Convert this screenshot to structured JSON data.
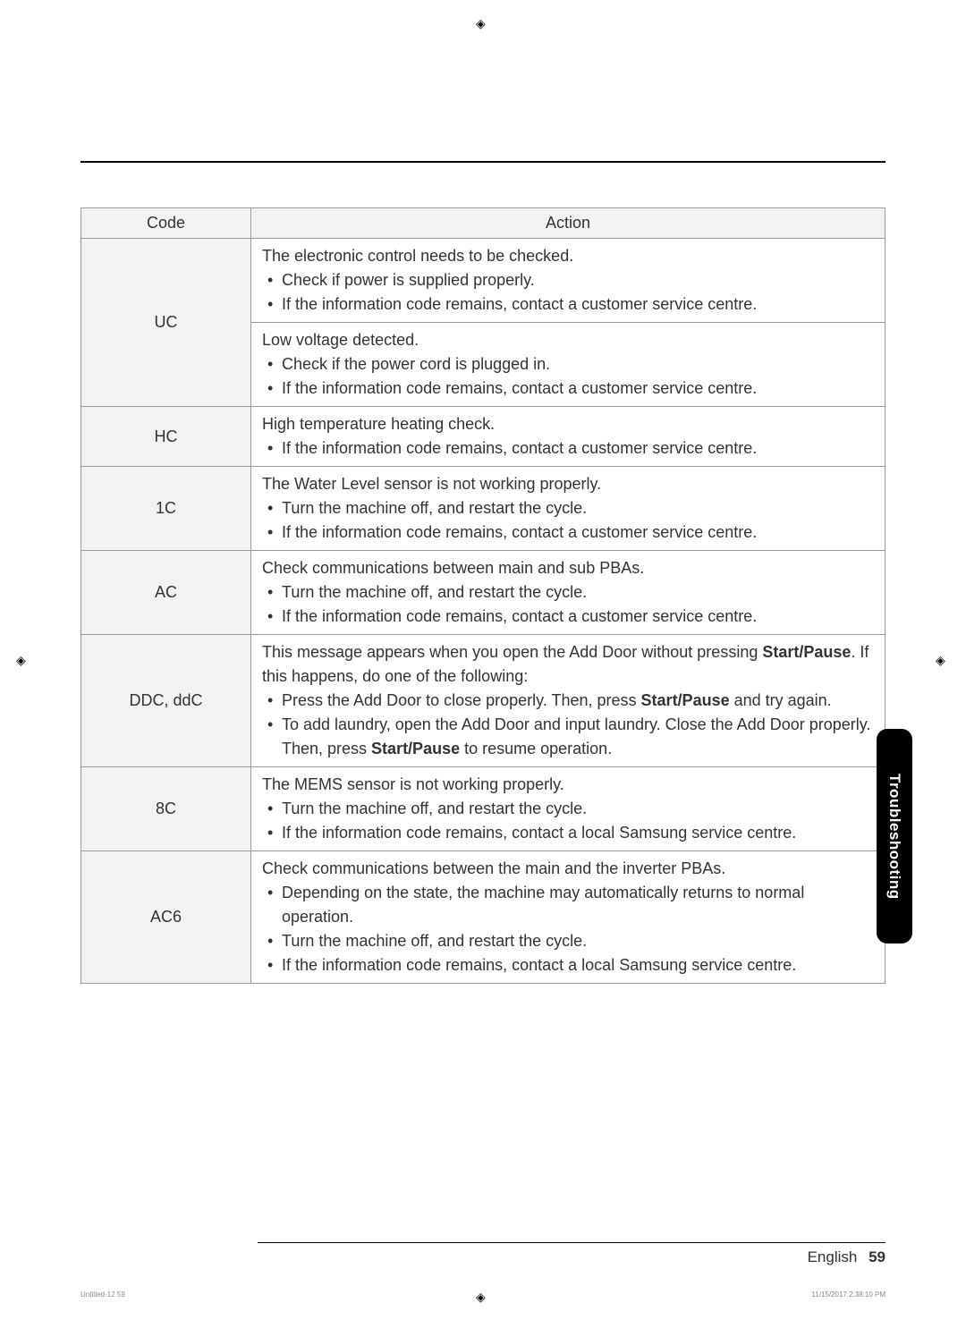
{
  "table": {
    "headers": {
      "code": "Code",
      "action": "Action"
    },
    "rows": [
      {
        "code": "UC",
        "actions": [
          {
            "intro": "The electronic control needs to be checked.",
            "bullets": [
              "Check if power is supplied properly.",
              "If the information code remains, contact a customer service centre."
            ]
          },
          {
            "intro": "Low voltage detected.",
            "bullets": [
              "Check if the power cord is plugged in.",
              "If the information code remains, contact a customer service centre."
            ]
          }
        ]
      },
      {
        "code": "HC",
        "actions": [
          {
            "intro": "High temperature heating check.",
            "bullets": [
              "If the information code remains, contact a customer service centre."
            ]
          }
        ]
      },
      {
        "code": "1C",
        "actions": [
          {
            "intro": "The Water Level sensor is not working properly.",
            "bullets": [
              "Turn the machine off, and restart the cycle.",
              "If the information code remains, contact a customer service centre."
            ]
          }
        ]
      },
      {
        "code": "AC",
        "actions": [
          {
            "intro": "Check communications between main and sub PBAs.",
            "bullets": [
              "Turn the machine off, and restart the cycle.",
              "If the information code remains, contact a customer service centre."
            ]
          }
        ]
      },
      {
        "code": "DDC, ddC",
        "actions": [
          {
            "intro_html": "This message appears when you open the Add Door without pressing <b>Start/Pause</b>. If this happens, do one of the following:",
            "bullets_html": [
              "Press the Add Door to close properly. Then, press <b>Start/Pause</b> and try again.",
              "To add laundry, open the Add Door and input laundry. Close the Add Door properly. Then, press <b>Start/Pause</b> to resume operation."
            ]
          }
        ]
      },
      {
        "code": "8C",
        "actions": [
          {
            "intro": "The MEMS sensor is not working properly.",
            "bullets": [
              "Turn the machine off, and restart the cycle.",
              "If the information code remains, contact a local Samsung service centre."
            ]
          }
        ]
      },
      {
        "code": "AC6",
        "actions": [
          {
            "intro": "Check communications between the main and the inverter PBAs.",
            "bullets": [
              "Depending on the state, the machine may automatically returns to normal operation.",
              "Turn the machine off, and restart the cycle.",
              "If the information code remains, contact a local Samsung service centre."
            ]
          }
        ]
      }
    ]
  },
  "sideTab": "Troubleshooting",
  "footer": {
    "language": "English",
    "page": "59"
  },
  "tinyFooter": {
    "left": "Untitled-12   59",
    "right": "11/15/2017   2:38:10 PM"
  }
}
